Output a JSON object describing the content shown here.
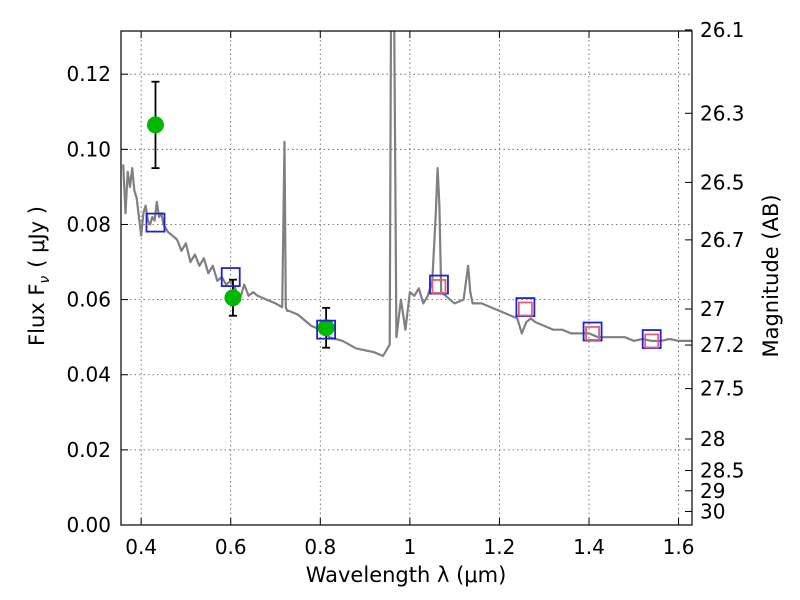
{
  "chart_data": {
    "type": "scatter",
    "xlabel": "Wavelength  λ (μm)",
    "ylabel": "Flux  F",
    "ylabel_sub": "ν",
    "ylabel_unit": "( μJy )",
    "ylabel_right": "Magnitude (AB)",
    "xlim": [
      0.355,
      1.63
    ],
    "ylim": [
      0.0,
      0.1315
    ],
    "grid": true,
    "x_ticks": [
      0.4,
      0.6,
      0.8,
      1.0,
      1.2,
      1.4,
      1.6
    ],
    "x_tick_labels": [
      "0.4",
      "0.6",
      "0.8",
      "1",
      "1.2",
      "1.4",
      "1.6"
    ],
    "y_ticks": [
      0.0,
      0.02,
      0.04,
      0.06,
      0.08,
      0.1,
      0.12
    ],
    "y_tick_labels": [
      "0.00",
      "0.02",
      "0.04",
      "0.06",
      "0.08",
      "0.10",
      "0.12"
    ],
    "right_ticks": [
      {
        "label": "26.1",
        "flux": 0.1318
      },
      {
        "label": "26.3",
        "flux": 0.1096
      },
      {
        "label": "26.5",
        "flux": 0.0912
      },
      {
        "label": "26.7",
        "flux": 0.0759
      },
      {
        "label": "27",
        "flux": 0.0575
      },
      {
        "label": "27.2",
        "flux": 0.0479
      },
      {
        "label": "27.5",
        "flux": 0.0363
      },
      {
        "label": "28",
        "flux": 0.0229
      },
      {
        "label": "28.5",
        "flux": 0.0145
      },
      {
        "label": "29",
        "flux": 0.0091
      },
      {
        "label": "30",
        "flux": 0.0036
      }
    ],
    "series": [
      {
        "style": "line",
        "color": "#808080",
        "x": [
          0.36,
          0.365,
          0.37,
          0.375,
          0.38,
          0.385,
          0.39,
          0.395,
          0.4,
          0.405,
          0.41,
          0.415,
          0.42,
          0.425,
          0.43,
          0.435,
          0.44,
          0.445,
          0.45,
          0.46,
          0.47,
          0.48,
          0.49,
          0.5,
          0.51,
          0.52,
          0.53,
          0.54,
          0.55,
          0.56,
          0.57,
          0.58,
          0.59,
          0.6,
          0.61,
          0.62,
          0.63,
          0.64,
          0.65,
          0.66,
          0.68,
          0.7,
          0.715,
          0.72,
          0.723,
          0.726,
          0.73,
          0.75,
          0.78,
          0.8,
          0.82,
          0.85,
          0.88,
          0.9,
          0.92,
          0.94,
          0.955,
          0.958,
          0.96,
          0.962,
          0.965,
          0.97,
          0.98,
          0.99,
          1.0,
          1.01,
          1.02,
          1.03,
          1.04,
          1.05,
          1.058,
          1.062,
          1.066,
          1.07,
          1.08,
          1.1,
          1.12,
          1.13,
          1.135,
          1.14,
          1.16,
          1.18,
          1.2,
          1.22,
          1.24,
          1.25,
          1.26,
          1.27,
          1.28,
          1.3,
          1.32,
          1.34,
          1.36,
          1.38,
          1.4,
          1.42,
          1.44,
          1.46,
          1.48,
          1.5,
          1.52,
          1.54,
          1.56,
          1.58,
          1.6,
          1.63
        ],
        "y": [
          0.096,
          0.083,
          0.094,
          0.09,
          0.095,
          0.089,
          0.087,
          0.082,
          0.077,
          0.083,
          0.085,
          0.081,
          0.08,
          0.082,
          0.081,
          0.086,
          0.082,
          0.083,
          0.08,
          0.078,
          0.077,
          0.076,
          0.073,
          0.075,
          0.07,
          0.072,
          0.069,
          0.071,
          0.067,
          0.069,
          0.065,
          0.066,
          0.064,
          0.065,
          0.063,
          0.06,
          0.064,
          0.061,
          0.062,
          0.061,
          0.06,
          0.059,
          0.058,
          0.102,
          0.058,
          0.057,
          0.057,
          0.056,
          0.053,
          0.052,
          0.05,
          0.049,
          0.047,
          0.0465,
          0.046,
          0.045,
          0.048,
          0.135,
          0.135,
          0.135,
          0.135,
          0.05,
          0.06,
          0.052,
          0.062,
          0.061,
          0.063,
          0.059,
          0.061,
          0.065,
          0.083,
          0.095,
          0.085,
          0.062,
          0.061,
          0.059,
          0.06,
          0.069,
          0.062,
          0.059,
          0.059,
          0.058,
          0.057,
          0.056,
          0.055,
          0.051,
          0.054,
          0.055,
          0.054,
          0.053,
          0.052,
          0.052,
          0.051,
          0.051,
          0.051,
          0.05,
          0.05,
          0.05,
          0.05,
          0.049,
          0.0495,
          0.049,
          0.049,
          0.0495,
          0.049,
          0.049
        ]
      },
      {
        "style": "points",
        "marker": "circle",
        "color": "#00b800",
        "x": [
          0.432,
          0.605,
          0.813
        ],
        "y": [
          0.1065,
          0.0605,
          0.0525
        ],
        "yerr": [
          0.0115,
          0.0048,
          0.0053
        ]
      },
      {
        "style": "points",
        "marker": "square-open",
        "color": "#2222cc",
        "x": [
          0.432,
          0.6,
          0.813,
          1.065,
          1.258,
          1.408,
          1.54
        ],
        "y": [
          0.0805,
          0.066,
          0.052,
          0.064,
          0.058,
          0.0515,
          0.0495
        ]
      },
      {
        "style": "points",
        "marker": "square-open",
        "color": "#e0607a",
        "x": [
          1.065,
          1.258,
          1.408,
          1.54
        ],
        "y": [
          0.0635,
          0.0575,
          0.051,
          0.049
        ]
      }
    ]
  }
}
